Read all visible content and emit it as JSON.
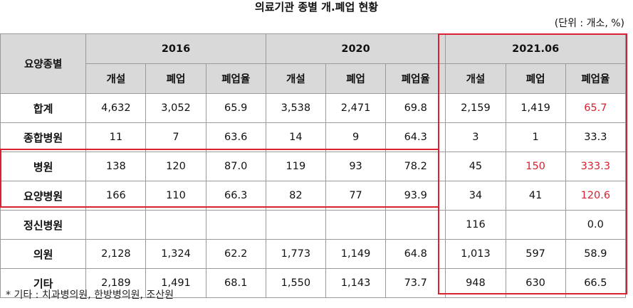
{
  "title": "의료기관 종별 개.폐업 현황",
  "unit": "(단위 : 개소, %)",
  "header": {
    "category": "요양종별",
    "years": [
      "2016",
      "2020",
      "2021.06"
    ],
    "subcols": [
      "개설",
      "폐업",
      "폐업율"
    ]
  },
  "rows": [
    {
      "label": "합계",
      "values": [
        "4,632",
        "3,052",
        "65.9",
        "3,538",
        "2,471",
        "69.8",
        "2,159",
        "1,419",
        "65.7"
      ]
    },
    {
      "label": "종합병원",
      "values": [
        "11",
        "7",
        "63.6",
        "14",
        "9",
        "64.3",
        "3",
        "1",
        "33.3"
      ]
    },
    {
      "label": "병원",
      "values": [
        "138",
        "120",
        "87.0",
        "119",
        "93",
        "78.2",
        "45",
        "150",
        "333.3"
      ]
    },
    {
      "label": "요양병원",
      "values": [
        "166",
        "110",
        "66.3",
        "82",
        "77",
        "93.9",
        "34",
        "41",
        "120.6"
      ]
    },
    {
      "label": "정신병원",
      "values": [
        "",
        "",
        "",
        "",
        "",
        "",
        "116",
        "",
        "0.0"
      ]
    },
    {
      "label": "의원",
      "values": [
        "2,128",
        "1,324",
        "62.2",
        "1,773",
        "1,149",
        "64.8",
        "1,013",
        "597",
        "58.9"
      ]
    },
    {
      "label": "기타",
      "values": [
        "2,189",
        "1,491",
        "68.1",
        "1,550",
        "1,143",
        "73.7",
        "948",
        "630",
        "66.5"
      ]
    }
  ],
  "highlight_color": "#d9212f",
  "note": "* 기타 : 치과병의원, 한방병의원, 조산원"
}
